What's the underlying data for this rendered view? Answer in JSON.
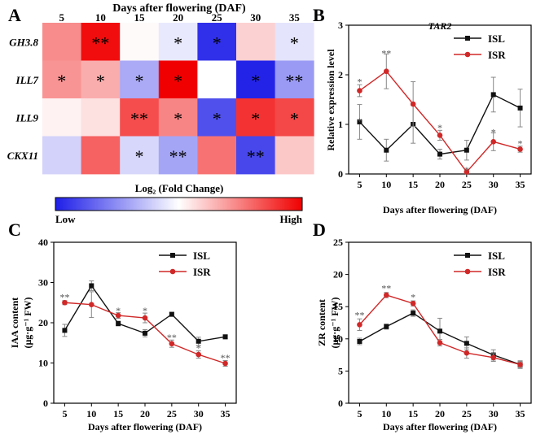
{
  "figure_note": "Four-panel figure: heatmap of auxin-related gene expression and three line charts comparing ISL and ISR.",
  "colors": {
    "isl": "#111111",
    "isr": "#d02828",
    "low": "#1e1ee8",
    "mid": "#ffffff",
    "high": "#f00000",
    "error_bar": "#888888"
  },
  "chart_data": [
    {
      "panel": "A",
      "type": "heatmap",
      "title": "Days after flowering (DAF)",
      "columns": [
        "5",
        "10",
        "15",
        "20",
        "25",
        "30",
        "35"
      ],
      "rows": [
        "GH3.8",
        "ILL7",
        "ILL9",
        "CKX11"
      ],
      "values": [
        [
          0.45,
          0.95,
          0.02,
          -0.1,
          -0.92,
          0.18,
          -0.12
        ],
        [
          0.42,
          0.32,
          -0.38,
          1.0,
          0.0,
          -0.98,
          -0.45
        ],
        [
          0.05,
          0.12,
          0.7,
          0.48,
          -0.78,
          0.8,
          0.72
        ],
        [
          -0.2,
          0.62,
          -0.18,
          -0.4,
          0.55,
          -0.82,
          0.22
        ]
      ],
      "marks": [
        [
          "",
          "**",
          "",
          "*",
          "*",
          "",
          "*"
        ],
        [
          "*",
          "*",
          "*",
          "*",
          "",
          "*",
          "**"
        ],
        [
          "",
          "",
          "**",
          "*",
          "*",
          "*",
          "*"
        ],
        [
          "",
          "",
          "*",
          "**",
          "",
          "**",
          ""
        ]
      ],
      "scale_range": [
        -1,
        1
      ],
      "legend_title": "Log₂ (Fold Change)",
      "legend_low": "Low",
      "legend_high": "High"
    },
    {
      "panel": "B",
      "type": "line",
      "title": "TAR2",
      "xlabel": "Days after flowering (DAF)",
      "ylabel": "Relative expression level",
      "x": [
        5,
        10,
        15,
        20,
        25,
        30,
        35
      ],
      "ylim": [
        0,
        3
      ],
      "yticks": [
        0,
        1,
        2,
        3
      ],
      "legend_position": "top-right",
      "series": [
        {
          "name": "ISL",
          "values": [
            1.05,
            0.48,
            1.0,
            0.4,
            0.48,
            1.6,
            1.33
          ],
          "errors": [
            0.35,
            0.22,
            0.38,
            0.1,
            0.2,
            0.35,
            0.38
          ],
          "marker": "square"
        },
        {
          "name": "ISR",
          "values": [
            1.68,
            2.07,
            1.41,
            0.78,
            0.04,
            0.65,
            0.5
          ],
          "errors": [
            0.12,
            0.35,
            0.45,
            0.1,
            0.03,
            0.18,
            0.06
          ],
          "marker": "circle"
        }
      ],
      "annotations": [
        {
          "x": 5,
          "y": 1.88,
          "text": "*"
        },
        {
          "x": 5,
          "y": 1.08,
          "text": "*"
        },
        {
          "x": 10,
          "y": 2.45,
          "text": "**"
        },
        {
          "x": 20,
          "y": 0.95,
          "text": "*"
        },
        {
          "x": 25,
          "y": 0.1,
          "text": "*"
        },
        {
          "x": 30,
          "y": 0.86,
          "text": "*"
        },
        {
          "x": 35,
          "y": 0.63,
          "text": "*"
        }
      ]
    },
    {
      "panel": "C",
      "type": "line",
      "title": "",
      "xlabel": "Days after flowering (DAF)",
      "ylabel": "IAA content",
      "ylabel_unit": "(μg·g⁻¹ FW)",
      "x": [
        5,
        10,
        15,
        20,
        25,
        30,
        35
      ],
      "ylim": [
        0,
        40
      ],
      "yticks": [
        0,
        10,
        20,
        30,
        40
      ],
      "legend_position": "top-right",
      "series": [
        {
          "name": "ISL",
          "values": [
            18.1,
            29.2,
            19.8,
            17.4,
            22.1,
            15.4,
            16.5
          ],
          "errors": [
            1.5,
            1.2,
            0.6,
            0.9,
            0.5,
            1.0,
            0.5
          ],
          "marker": "square"
        },
        {
          "name": "ISR",
          "values": [
            25.0,
            24.5,
            21.8,
            21.2,
            14.8,
            12.1,
            9.9
          ],
          "errors": [
            0.5,
            3.2,
            0.7,
            1.2,
            0.9,
            0.9,
            0.7
          ],
          "marker": "circle"
        }
      ],
      "annotations": [
        {
          "x": 5,
          "y": 26.6,
          "text": "**"
        },
        {
          "x": 15,
          "y": 23.2,
          "text": "*"
        },
        {
          "x": 20,
          "y": 23.2,
          "text": "*"
        },
        {
          "x": 25,
          "y": 16.6,
          "text": "**"
        },
        {
          "x": 30,
          "y": 13.9,
          "text": "*"
        },
        {
          "x": 35,
          "y": 11.5,
          "text": "**"
        }
      ]
    },
    {
      "panel": "D",
      "type": "line",
      "title": "",
      "xlabel": "Days after flowering (DAF)",
      "ylabel": "ZR content",
      "ylabel_unit": "(μg·g⁻¹ FW)",
      "x": [
        5,
        10,
        15,
        20,
        25,
        30,
        35
      ],
      "ylim": [
        0,
        25
      ],
      "yticks": [
        0,
        5,
        10,
        15,
        20,
        25
      ],
      "legend_position": "top-right",
      "series": [
        {
          "name": "ISL",
          "values": [
            9.6,
            11.9,
            14.0,
            11.2,
            9.3,
            7.5,
            6.0
          ],
          "errors": [
            0.5,
            0.4,
            0.5,
            2.0,
            1.0,
            0.8,
            0.6
          ],
          "marker": "square"
        },
        {
          "name": "ISR",
          "values": [
            12.2,
            16.8,
            15.5,
            9.4,
            7.8,
            7.1,
            6.0
          ],
          "errors": [
            0.9,
            0.4,
            0.4,
            0.5,
            0.8,
            0.6,
            0.5
          ],
          "marker": "circle"
        }
      ],
      "annotations": [
        {
          "x": 5,
          "y": 13.8,
          "text": "**"
        },
        {
          "x": 10,
          "y": 18.0,
          "text": "**"
        },
        {
          "x": 15,
          "y": 16.6,
          "text": "*"
        }
      ]
    }
  ]
}
